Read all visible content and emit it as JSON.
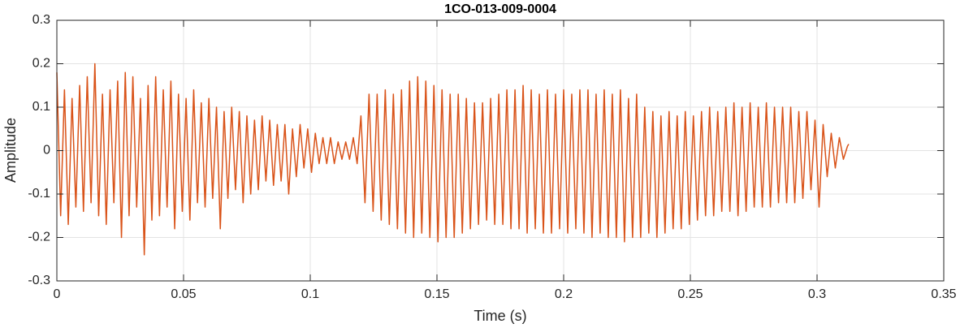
{
  "chart_data": {
    "type": "line",
    "title": "1CO-013-009-0004",
    "x_label": "Time (s)",
    "y_label": "Amplitude",
    "color": "#d95319",
    "grid": true,
    "xlim": [
      0,
      0.35
    ],
    "xticks": [
      0,
      0.05,
      0.1,
      0.15,
      0.2,
      0.25,
      0.3,
      0.35
    ],
    "ylim": [
      -0.3,
      0.3
    ],
    "yticks": [
      -0.3,
      -0.2,
      -0.1,
      0,
      0.1,
      0.2,
      0.3
    ],
    "x": [
      0,
      0.0015,
      0.003,
      0.0045,
      0.006,
      0.0075,
      0.009,
      0.0105,
      0.012,
      0.0135,
      0.015,
      0.0165,
      0.018,
      0.0195,
      0.021,
      0.0225,
      0.024,
      0.0255,
      0.027,
      0.0285,
      0.03,
      0.0315,
      0.033,
      0.0345,
      0.036,
      0.0375,
      0.039,
      0.0405,
      0.042,
      0.0435,
      0.045,
      0.0465,
      0.048,
      0.0495,
      0.051,
      0.0525,
      0.054,
      0.0555,
      0.057,
      0.0585,
      0.06,
      0.0615,
      0.063,
      0.0645,
      0.066,
      0.0675,
      0.069,
      0.0705,
      0.072,
      0.0735,
      0.075,
      0.0765,
      0.078,
      0.0795,
      0.081,
      0.0825,
      0.084,
      0.0855,
      0.087,
      0.0885,
      0.09,
      0.0915,
      0.093,
      0.0945,
      0.096,
      0.0975,
      0.099,
      0.1005,
      0.102,
      0.1035,
      0.105,
      0.1065,
      0.108,
      0.1095,
      0.111,
      0.1125,
      0.114,
      0.1155,
      0.117,
      0.1185,
      0.12,
      0.1216,
      0.1232,
      0.1248,
      0.1264,
      0.128,
      0.1296,
      0.1312,
      0.1328,
      0.1344,
      0.136,
      0.1376,
      0.1392,
      0.1408,
      0.1424,
      0.144,
      0.1456,
      0.1472,
      0.1488,
      0.1504,
      0.152,
      0.1536,
      0.1552,
      0.1568,
      0.1584,
      0.16,
      0.1616,
      0.1632,
      0.1648,
      0.1664,
      0.168,
      0.1696,
      0.1712,
      0.1728,
      0.1744,
      0.176,
      0.1776,
      0.1792,
      0.1808,
      0.1824,
      0.184,
      0.1856,
      0.1872,
      0.1888,
      0.1904,
      0.192,
      0.1936,
      0.1952,
      0.1968,
      0.1984,
      0.2,
      0.2016,
      0.2032,
      0.2048,
      0.2064,
      0.208,
      0.2096,
      0.2112,
      0.2128,
      0.2144,
      0.216,
      0.2176,
      0.2192,
      0.2208,
      0.2224,
      0.224,
      0.2256,
      0.2272,
      0.2288,
      0.2304,
      0.232,
      0.2336,
      0.2352,
      0.2368,
      0.2384,
      0.24,
      0.2416,
      0.2432,
      0.2448,
      0.2464,
      0.248,
      0.2496,
      0.2512,
      0.2528,
      0.2544,
      0.256,
      0.2576,
      0.2592,
      0.2608,
      0.2624,
      0.264,
      0.2656,
      0.2672,
      0.2688,
      0.2704,
      0.272,
      0.2736,
      0.2752,
      0.2768,
      0.2784,
      0.28,
      0.2816,
      0.2832,
      0.2848,
      0.2864,
      0.288,
      0.2896,
      0.2912,
      0.2928,
      0.2944,
      0.296,
      0.2976,
      0.2992,
      0.3008,
      0.3024,
      0.304,
      0.3056,
      0.3072,
      0.3088,
      0.3104,
      0.312,
      0.3125
    ],
    "values": [
      0.18,
      -0.15,
      0.14,
      -0.17,
      0.12,
      -0.13,
      0.15,
      -0.14,
      0.17,
      -0.12,
      0.2,
      -0.15,
      0.13,
      -0.17,
      0.14,
      -0.12,
      0.16,
      -0.2,
      0.18,
      -0.15,
      0.17,
      -0.13,
      0.12,
      -0.24,
      0.15,
      -0.16,
      0.17,
      -0.15,
      0.14,
      -0.13,
      0.16,
      -0.18,
      0.13,
      -0.14,
      0.12,
      -0.16,
      0.14,
      -0.12,
      0.11,
      -0.13,
      0.12,
      -0.11,
      0.1,
      -0.18,
      0.09,
      -0.11,
      0.1,
      -0.09,
      0.09,
      -0.12,
      0.08,
      -0.1,
      0.07,
      -0.09,
      0.08,
      -0.07,
      0.07,
      -0.08,
      0.06,
      -0.07,
      0.06,
      -0.1,
      0.05,
      -0.06,
      0.06,
      -0.04,
      0.05,
      -0.05,
      0.04,
      -0.03,
      0.03,
      -0.03,
      0.03,
      -0.03,
      0.02,
      -0.02,
      0.02,
      -0.02,
      0.03,
      -0.03,
      0.08,
      -0.12,
      0.13,
      -0.14,
      0.13,
      -0.16,
      0.14,
      -0.17,
      0.13,
      -0.18,
      0.14,
      -0.19,
      0.16,
      -0.2,
      0.17,
      -0.19,
      0.16,
      -0.2,
      0.15,
      -0.21,
      0.14,
      -0.2,
      0.13,
      -0.2,
      0.13,
      -0.19,
      0.12,
      -0.18,
      0.11,
      -0.17,
      0.11,
      -0.16,
      0.12,
      -0.17,
      0.13,
      -0.17,
      0.14,
      -0.18,
      0.14,
      -0.18,
      0.15,
      -0.19,
      0.14,
      -0.18,
      0.13,
      -0.19,
      0.14,
      -0.19,
      0.13,
      -0.18,
      0.14,
      -0.19,
      0.13,
      -0.18,
      0.14,
      -0.19,
      0.14,
      -0.2,
      0.13,
      -0.19,
      0.14,
      -0.2,
      0.13,
      -0.2,
      0.14,
      -0.21,
      0.12,
      -0.2,
      0.13,
      -0.2,
      0.1,
      -0.19,
      0.09,
      -0.2,
      0.08,
      -0.19,
      0.09,
      -0.18,
      0.08,
      -0.18,
      0.09,
      -0.17,
      0.08,
      -0.16,
      0.09,
      -0.15,
      0.1,
      -0.15,
      0.09,
      -0.14,
      0.1,
      -0.14,
      0.11,
      -0.15,
      0.1,
      -0.14,
      0.11,
      -0.13,
      0.1,
      -0.13,
      0.11,
      -0.13,
      0.1,
      -0.12,
      0.1,
      -0.12,
      0.1,
      -0.12,
      0.09,
      -0.11,
      0.09,
      -0.09,
      0.07,
      -0.13,
      0.06,
      -0.06,
      0.04,
      -0.04,
      0.03,
      -0.02,
      0.01,
      0.015
    ]
  }
}
